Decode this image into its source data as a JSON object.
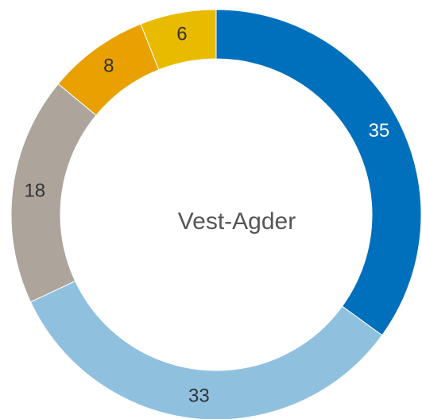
{
  "chart_data": {
    "type": "donut",
    "title": "Vest-Agder",
    "values": [
      35,
      33,
      18,
      8,
      6
    ],
    "colors": [
      "#0070bd",
      "#8fc1df",
      "#ada59c",
      "#e8a100",
      "#e8bb00"
    ]
  }
}
